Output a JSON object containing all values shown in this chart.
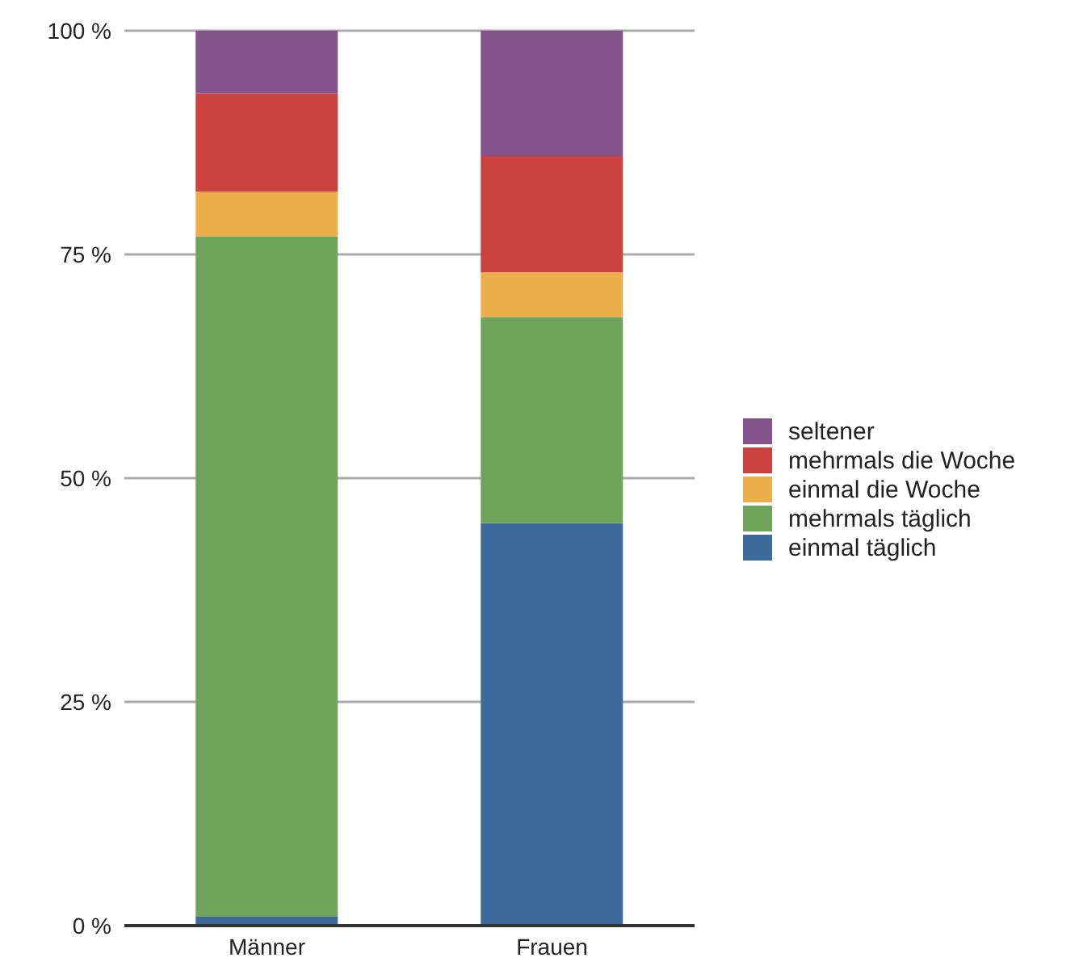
{
  "chart_data": {
    "type": "bar",
    "stacked": true,
    "categories": [
      "Männer",
      "Frauen"
    ],
    "series": [
      {
        "name": "einmal täglich",
        "color": "#3d6b9b",
        "values": [
          1,
          45
        ]
      },
      {
        "name": "mehrmals täglich",
        "color": "#6fa55a",
        "values": [
          76,
          23
        ]
      },
      {
        "name": "einmal die Woche",
        "color": "#ecad4b",
        "values": [
          5,
          5
        ]
      },
      {
        "name": "mehrmals die Woche",
        "color": "#cb423e",
        "values": [
          11,
          13
        ]
      },
      {
        "name": "seltener",
        "color": "#84538b",
        "values": [
          7,
          14
        ]
      }
    ],
    "ylim": [
      0,
      100
    ],
    "yticks": [
      {
        "value": 0,
        "label": "0 %"
      },
      {
        "value": 25,
        "label": "25 %"
      },
      {
        "value": 50,
        "label": "50 %"
      },
      {
        "value": 75,
        "label": "75 %"
      },
      {
        "value": 100,
        "label": "100 %"
      }
    ],
    "grid": "y",
    "legend": "right"
  }
}
